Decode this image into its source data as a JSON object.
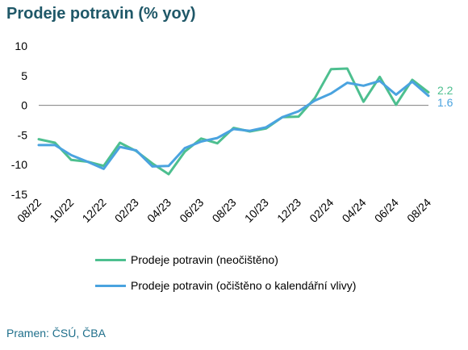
{
  "title": "Prodeje potravin (% yoy)",
  "source": "Pramen: ČSÚ, ČBA",
  "colors": {
    "series1": "#4dbf8f",
    "series2": "#4aa3df",
    "zero_line": "#808080"
  },
  "chart_data": {
    "type": "line",
    "ylim": [
      -15,
      10
    ],
    "yticks": [
      10,
      5,
      0,
      -5,
      -10,
      -15
    ],
    "x": [
      "08/22",
      "09/22",
      "10/22",
      "11/22",
      "12/22",
      "01/23",
      "02/23",
      "03/23",
      "04/23",
      "05/23",
      "06/23",
      "07/23",
      "08/23",
      "09/23",
      "10/23",
      "11/23",
      "12/23",
      "01/24",
      "02/24",
      "03/24",
      "04/24",
      "05/24",
      "06/24",
      "07/24",
      "08/24"
    ],
    "xtick_labels": [
      "08/22",
      "10/22",
      "12/22",
      "02/23",
      "04/23",
      "06/23",
      "08/23",
      "10/23",
      "12/23",
      "02/24",
      "04/24",
      "06/24",
      "08/24"
    ],
    "grid": false,
    "legend_position": "bottom",
    "series": [
      {
        "name": "Prodeje potravin (neočištěno)",
        "color": "#4dbf8f",
        "values": [
          -5.7,
          -6.3,
          -9.2,
          -9.5,
          -10.2,
          -6.3,
          -7.7,
          -9.8,
          -11.6,
          -7.8,
          -5.6,
          -6.4,
          -3.8,
          -4.4,
          -3.9,
          -2.0,
          -1.9,
          1.2,
          6.1,
          6.2,
          0.6,
          4.8,
          0.1,
          4.3,
          2.2
        ],
        "end_label": "2.2"
      },
      {
        "name": "Prodeje potravin (očištěno o kalendářní vlivy)",
        "color": "#4aa3df",
        "values": [
          -6.7,
          -6.7,
          -8.4,
          -9.5,
          -10.7,
          -7.0,
          -7.6,
          -10.3,
          -10.2,
          -7.2,
          -6.1,
          -5.5,
          -4.0,
          -4.3,
          -3.7,
          -2.0,
          -1.0,
          0.8,
          2.0,
          3.8,
          3.3,
          4.1,
          1.8,
          4.0,
          1.6
        ],
        "end_label": "1.6"
      }
    ]
  }
}
